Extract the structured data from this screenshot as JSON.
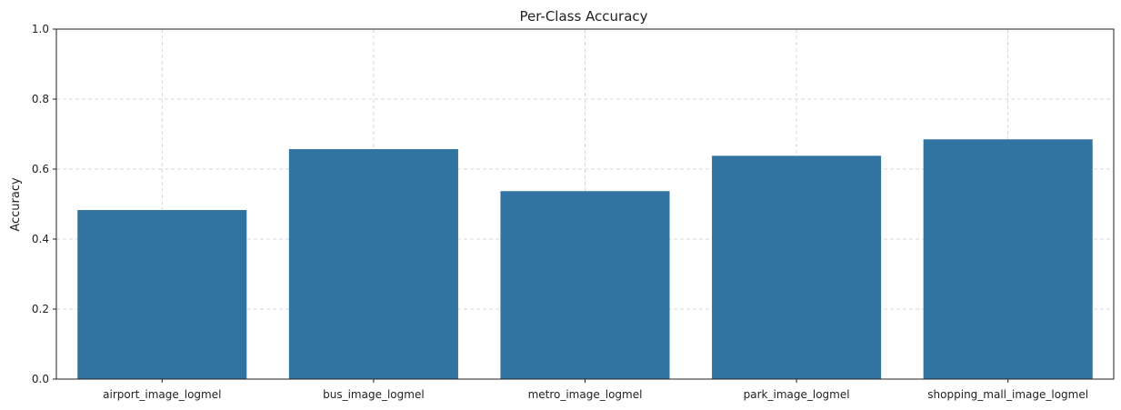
{
  "chart_data": {
    "type": "bar",
    "title": "Per-Class Accuracy",
    "xlabel": "",
    "ylabel": "Accuracy",
    "categories": [
      "airport_image_logmel",
      "bus_image_logmel",
      "metro_image_logmel",
      "park_image_logmel",
      "shopping_mall_image_logmel"
    ],
    "values": [
      0.483,
      0.657,
      0.537,
      0.638,
      0.685
    ],
    "ylim": [
      0,
      1.0
    ],
    "yticks": [
      "0.0",
      "0.2",
      "0.4",
      "0.6",
      "0.8",
      "1.0"
    ],
    "grid": true,
    "bar_color": "#3274a1"
  }
}
